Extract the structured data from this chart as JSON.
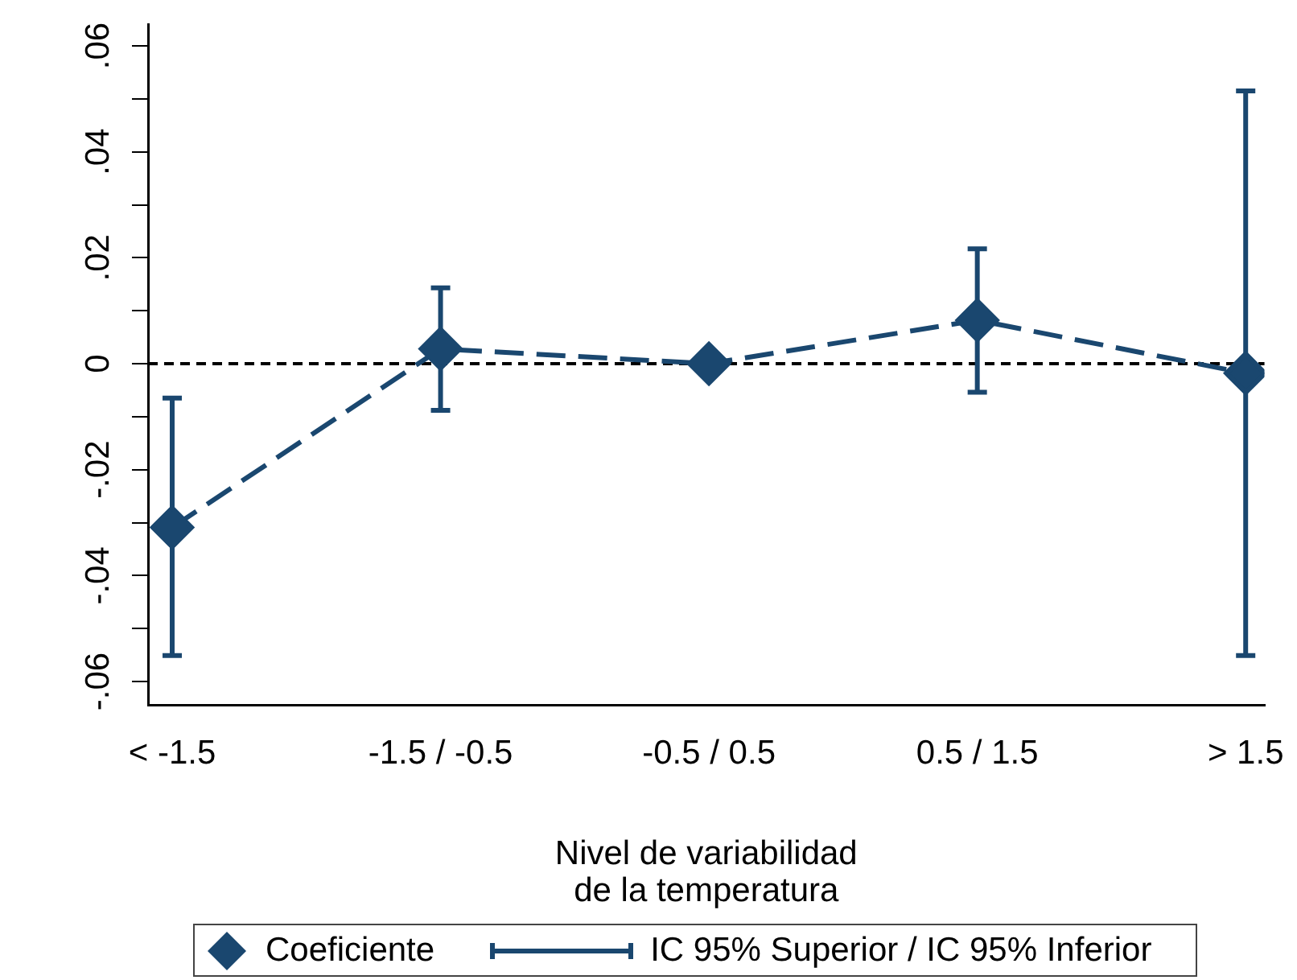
{
  "chart_data": {
    "type": "line",
    "xlabel": "Nivel de variabilidad\nde la temperatura",
    "categories": [
      "< -1.5",
      "-1.5 / -0.5",
      "-0.5 / 0.5",
      "0.5 / 1.5",
      "> 1.5"
    ],
    "series": [
      {
        "name": "Coeficiente",
        "color": "#1a476f",
        "values": [
          -0.0309,
          0.0028,
          0,
          0.0082,
          -0.0018
        ],
        "errors": [
          [
            -0.0551,
            -0.0065
          ],
          [
            -0.0088,
            0.0143
          ],
          null,
          [
            -0.0054,
            0.0217
          ],
          [
            -0.0551,
            0.0515
          ]
        ]
      }
    ],
    "annotations": [
      "IC 95% Superior / IC 95% Inferior"
    ],
    "ylim": [
      -0.0644,
      0.0641
    ],
    "yticks": [
      {
        "value": -0.06,
        "label": "-.06"
      },
      {
        "value": -0.05,
        "label": null
      },
      {
        "value": -0.04,
        "label": "-.04"
      },
      {
        "value": -0.03,
        "label": null
      },
      {
        "value": -0.02,
        "label": "-.02"
      },
      {
        "value": -0.01,
        "label": null
      },
      0,
      {
        "value": 0.01,
        "label": null
      },
      {
        "value": 0.02,
        "label": ".02"
      },
      {
        "value": 0.03,
        "label": null
      },
      {
        "value": 0.04,
        "label": ".04"
      },
      {
        "value": 0.05,
        "label": null
      },
      {
        "value": 0.06,
        "label": ".06"
      }
    ],
    "ref_lines": [
      {
        "axis": "y",
        "value": 0,
        "color": "#000000",
        "line_style": "dashed"
      }
    ],
    "grid": false,
    "legend": "bottom",
    "marker": "diamond",
    "line_style": "dashed"
  }
}
